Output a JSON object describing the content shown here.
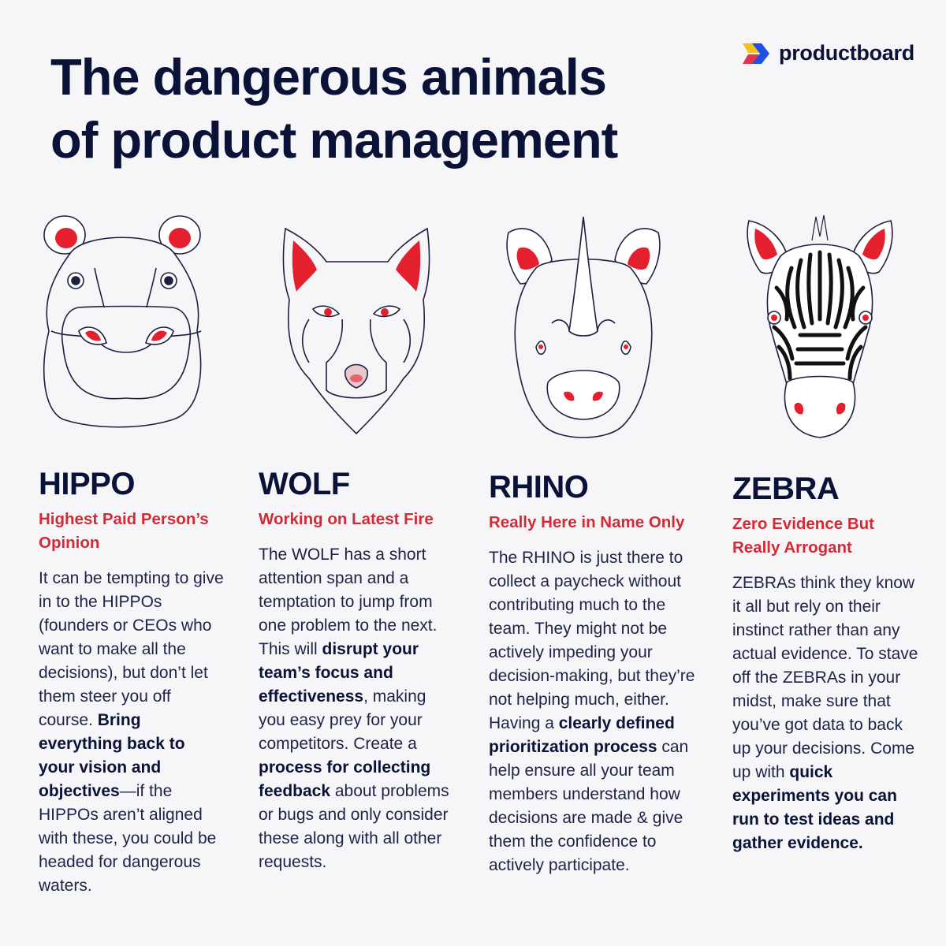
{
  "title": {
    "line1": "The dangerous animals",
    "line2": "of product management"
  },
  "brand": {
    "name": "productboard",
    "logo_icon": "productboard-logo-icon"
  },
  "colors": {
    "navy": "#0b1238",
    "accent_red": "#d42a35",
    "logo_blue": "#1f4fe6",
    "logo_yellow": "#f4c01e",
    "logo_red": "#e4334b"
  },
  "animals": [
    {
      "name": "HIPPO",
      "acronym": "Highest Paid Person’s Opinion",
      "text": [
        {
          "t": "It can be tempting to give in to the HIPPOs (founders or CEOs who want to make all the decisions), but don’t let them steer you off course. "
        },
        {
          "t": "Bring everything back to your vision and objectives",
          "b": true
        },
        {
          "t": "—if the HIPPOs aren’t aligned with these, you could be headed for dangerous waters."
        }
      ]
    },
    {
      "name": "WOLF",
      "acronym": "Working on Latest Fire",
      "text": [
        {
          "t": "The WOLF has a short attention span and a temptation to jump from one problem to the next. This will "
        },
        {
          "t": "disrupt your team’s focus and effectiveness",
          "b": true
        },
        {
          "t": ", making you easy prey for your competitors. Create a "
        },
        {
          "t": "process for collecting feedback",
          "b": true
        },
        {
          "t": " about problems or bugs and only consider these along with all other requests."
        }
      ]
    },
    {
      "name": "RHINO",
      "acronym": "Really Here in Name Only",
      "text": [
        {
          "t": "The RHINO is just there to collect a paycheck without contributing much to the team. They might not be actively impeding your decision-making, but they’re not helping much, either. Having a "
        },
        {
          "t": "clearly defined prioritization process",
          "b": true
        },
        {
          "t": " can help ensure all your team members understand how decisions are made & give them the confidence to actively participate."
        }
      ]
    },
    {
      "name": "ZEBRA",
      "acronym": "Zero Evidence But Really Arrogant",
      "text": [
        {
          "t": "ZEBRAs think they know it all but rely on their instinct rather than any actual evidence. To stave off the ZEBRAs in your midst, make sure that you’ve got data to back up your decisions. Come up with "
        },
        {
          "t": "quick experiments you can run to test ideas and gather evidence.",
          "b": true
        }
      ]
    }
  ]
}
